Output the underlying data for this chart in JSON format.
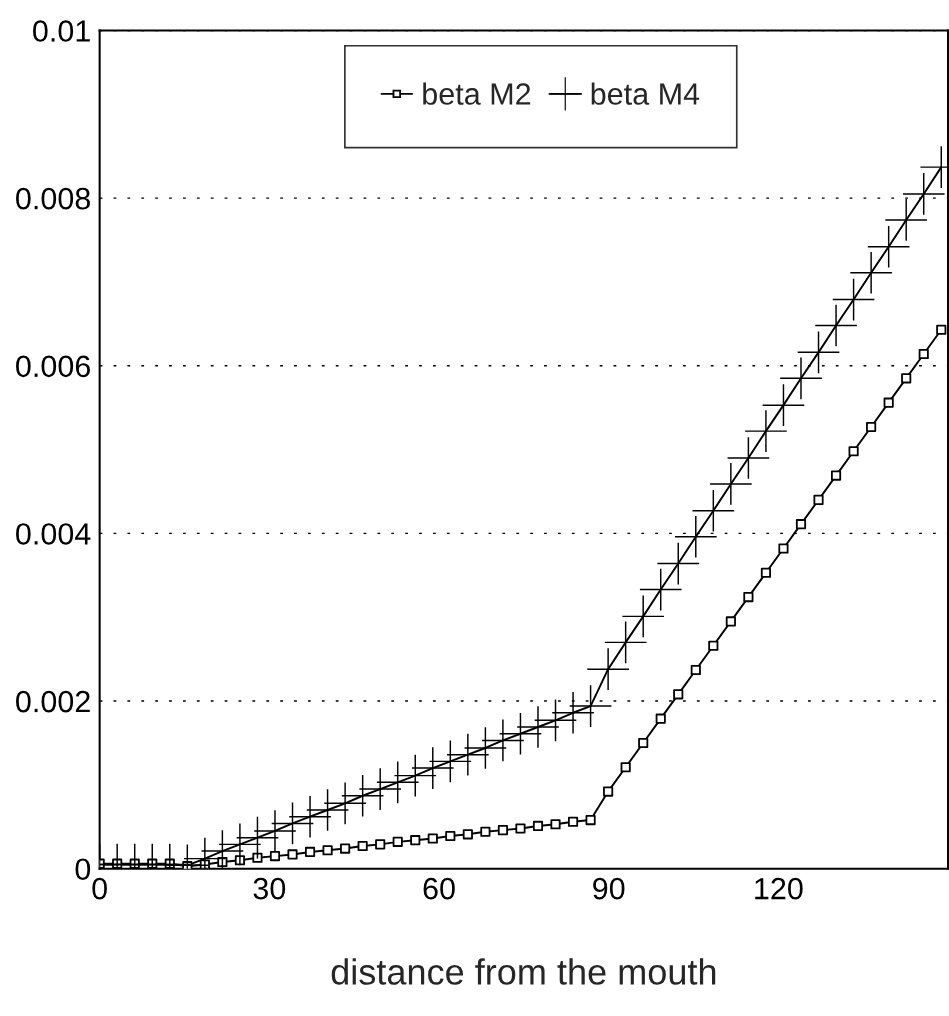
{
  "chart_data": {
    "type": "line",
    "xlabel": "distance from the mouth",
    "x": [
      0,
      3.1,
      6.2,
      9.3,
      12.4,
      15.5,
      18.6,
      21.7,
      24.8,
      27.9,
      31,
      34.1,
      37.2,
      40.3,
      43.4,
      46.5,
      49.6,
      52.7,
      55.8,
      58.9,
      62,
      65.1,
      68.2,
      71.3,
      74.4,
      77.5,
      80.6,
      83.7,
      86.8,
      89.9,
      93,
      96.1,
      99.2,
      102.3,
      105.4,
      108.5,
      111.6,
      114.7,
      117.8,
      120.9,
      124,
      127.1,
      130.2,
      133.3,
      136.4,
      139.5,
      142.6,
      145.7,
      148.8
    ],
    "series": [
      {
        "name": "beta M2",
        "color": "#000000",
        "marker": "square",
        "values": [
          6e-05,
          6e-05,
          6e-05,
          6e-05,
          6e-05,
          3e-05,
          5e-05,
          8e-05,
          0.0001,
          0.00013,
          0.00015,
          0.00017,
          0.0002,
          0.00022,
          0.00024,
          0.00027,
          0.00029,
          0.00032,
          0.00034,
          0.00036,
          0.00039,
          0.00041,
          0.00044,
          0.00046,
          0.00048,
          0.00051,
          0.00053,
          0.00056,
          0.00058,
          0.00092,
          0.00121,
          0.0015,
          0.00179,
          0.00208,
          0.00237,
          0.00266,
          0.00295,
          0.00324,
          0.00353,
          0.00382,
          0.00411,
          0.0044,
          0.00469,
          0.00498,
          0.00527,
          0.00556,
          0.00585,
          0.00614,
          0.00643
        ]
      },
      {
        "name": "beta M4",
        "color": "#000000",
        "marker": "cross",
        "values": [
          5e-05,
          5e-05,
          5e-05,
          5e-05,
          5e-05,
          4e-05,
          0.00012,
          0.00021,
          0.00029,
          0.00037,
          0.00045,
          0.00054,
          0.00062,
          0.0007,
          0.00078,
          0.00087,
          0.00095,
          0.00103,
          0.00111,
          0.0012,
          0.00128,
          0.00136,
          0.00144,
          0.00153,
          0.00161,
          0.00169,
          0.00177,
          0.00186,
          0.00194,
          0.00238,
          0.0027,
          0.00301,
          0.00333,
          0.00364,
          0.00396,
          0.00427,
          0.00459,
          0.0049,
          0.00522,
          0.00553,
          0.00585,
          0.00616,
          0.00648,
          0.00679,
          0.00711,
          0.00742,
          0.00774,
          0.00805,
          0.00837
        ]
      }
    ],
    "xlim": [
      0,
      150
    ],
    "xticks": [
      0,
      30,
      60,
      90,
      120
    ],
    "ylim": [
      0,
      0.01
    ],
    "yticks": [
      0,
      0.002,
      0.004,
      0.006,
      0.008,
      0.01
    ],
    "grid": "y",
    "legend": "top",
    "line_style": "solid"
  }
}
